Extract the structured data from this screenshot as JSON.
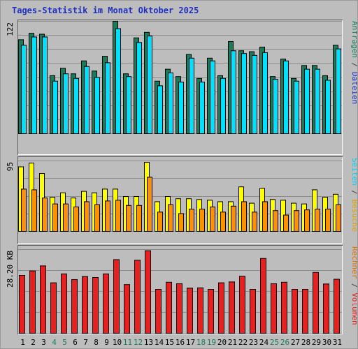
{
  "title": "Tages-Statistik im Monat Oktober 2025",
  "colors": {
    "background": "#bdbdbd",
    "title": "#1f2fbf",
    "anfragen": "#1a7a5c",
    "dateien": "#00e0ff",
    "besuche": "#ffff00",
    "seiten": "#ff9000",
    "volumen": "#e82020",
    "weekend": "#1a7a5c",
    "weekday": "#000000"
  },
  "right_labels": {
    "top": {
      "parts": [
        {
          "text": "Anfragen",
          "color": "#1a7a5c"
        },
        {
          "text": " / ",
          "color": "#404040"
        },
        {
          "text": "Dateien",
          "color": "#1f2fbf"
        }
      ]
    },
    "middle": {
      "parts": [
        {
          "text": "Seiten",
          "color": "#00d0f0"
        },
        {
          "text": " / ",
          "color": "#404040"
        },
        {
          "text": "Besuche",
          "color": "#e0a000"
        }
      ]
    },
    "bottom": {
      "parts": [
        {
          "text": "Rechner",
          "color": "#e07000"
        },
        {
          "text": " / ",
          "color": "#404040"
        },
        {
          "text": "Volumen",
          "color": "#e82020"
        }
      ]
    }
  },
  "chart_data": [
    {
      "type": "bar",
      "ymax_label": "122",
      "ylim": [
        0,
        122
      ],
      "categories": [
        "1",
        "2",
        "3",
        "4",
        "5",
        "6",
        "7",
        "8",
        "9",
        "10",
        "11",
        "12",
        "13",
        "14",
        "15",
        "16",
        "17",
        "18",
        "19",
        "20",
        "21",
        "22",
        "23",
        "24",
        "25",
        "26",
        "27",
        "28",
        "29",
        "30",
        "31"
      ],
      "weekend_days": [
        "4",
        "5",
        "11",
        "12",
        "18",
        "19",
        "25",
        "26"
      ],
      "series": [
        {
          "name": "Anfragen",
          "values": [
            102,
            109,
            108,
            63,
            71,
            65,
            79,
            68,
            84,
            122,
            65,
            104,
            110,
            57,
            70,
            62,
            86,
            60,
            82,
            63,
            100,
            90,
            89,
            94,
            62,
            81,
            60,
            74,
            74,
            63,
            96
          ]
        },
        {
          "name": "Dateien",
          "values": [
            96,
            105,
            105,
            57,
            65,
            60,
            73,
            61,
            77,
            114,
            62,
            99,
            106,
            52,
            66,
            56,
            82,
            56,
            79,
            60,
            90,
            87,
            85,
            88,
            59,
            79,
            57,
            70,
            70,
            58,
            92
          ]
        }
      ]
    },
    {
      "type": "bar",
      "ymax_label": "95",
      "ylim": [
        0,
        95
      ],
      "categories": [
        "1",
        "2",
        "3",
        "4",
        "5",
        "6",
        "7",
        "8",
        "9",
        "10",
        "11",
        "12",
        "13",
        "14",
        "15",
        "16",
        "17",
        "18",
        "19",
        "20",
        "21",
        "22",
        "23",
        "24",
        "25",
        "26",
        "27",
        "28",
        "29",
        "30",
        "31"
      ],
      "series": [
        {
          "name": "Besuche",
          "values": [
            87,
            92,
            78,
            46,
            52,
            45,
            54,
            52,
            57,
            57,
            47,
            47,
            93,
            40,
            47,
            44,
            44,
            43,
            42,
            40,
            40,
            60,
            38,
            58,
            43,
            42,
            38,
            37,
            56,
            46,
            50
          ]
        },
        {
          "name": "Seiten",
          "values": [
            57,
            56,
            45,
            37,
            37,
            33,
            40,
            36,
            41,
            42,
            35,
            35,
            73,
            26,
            36,
            24,
            30,
            30,
            33,
            26,
            34,
            40,
            26,
            40,
            28,
            22,
            28,
            29,
            30,
            30,
            36
          ]
        }
      ]
    },
    {
      "type": "bar",
      "ymax_label": "28.20 KB",
      "ylim": [
        0,
        28.2
      ],
      "categories": [
        "1",
        "2",
        "3",
        "4",
        "5",
        "6",
        "7",
        "8",
        "9",
        "10",
        "11",
        "12",
        "13",
        "14",
        "15",
        "16",
        "17",
        "18",
        "19",
        "20",
        "21",
        "22",
        "23",
        "24",
        "25",
        "26",
        "27",
        "28",
        "29",
        "30",
        "31"
      ],
      "series": [
        {
          "name": "Volumen",
          "values": [
            19.5,
            21,
            22.7,
            17,
            20,
            18.1,
            19.1,
            18.8,
            20,
            24.8,
            16.4,
            24.6,
            27.8,
            14.8,
            17.2,
            16.7,
            15.2,
            15.3,
            14.8,
            17,
            17.3,
            19.2,
            14.8,
            25.2,
            16.7,
            17.2,
            14.8,
            14.8,
            20.5,
            16.6,
            18.2
          ]
        }
      ]
    }
  ]
}
